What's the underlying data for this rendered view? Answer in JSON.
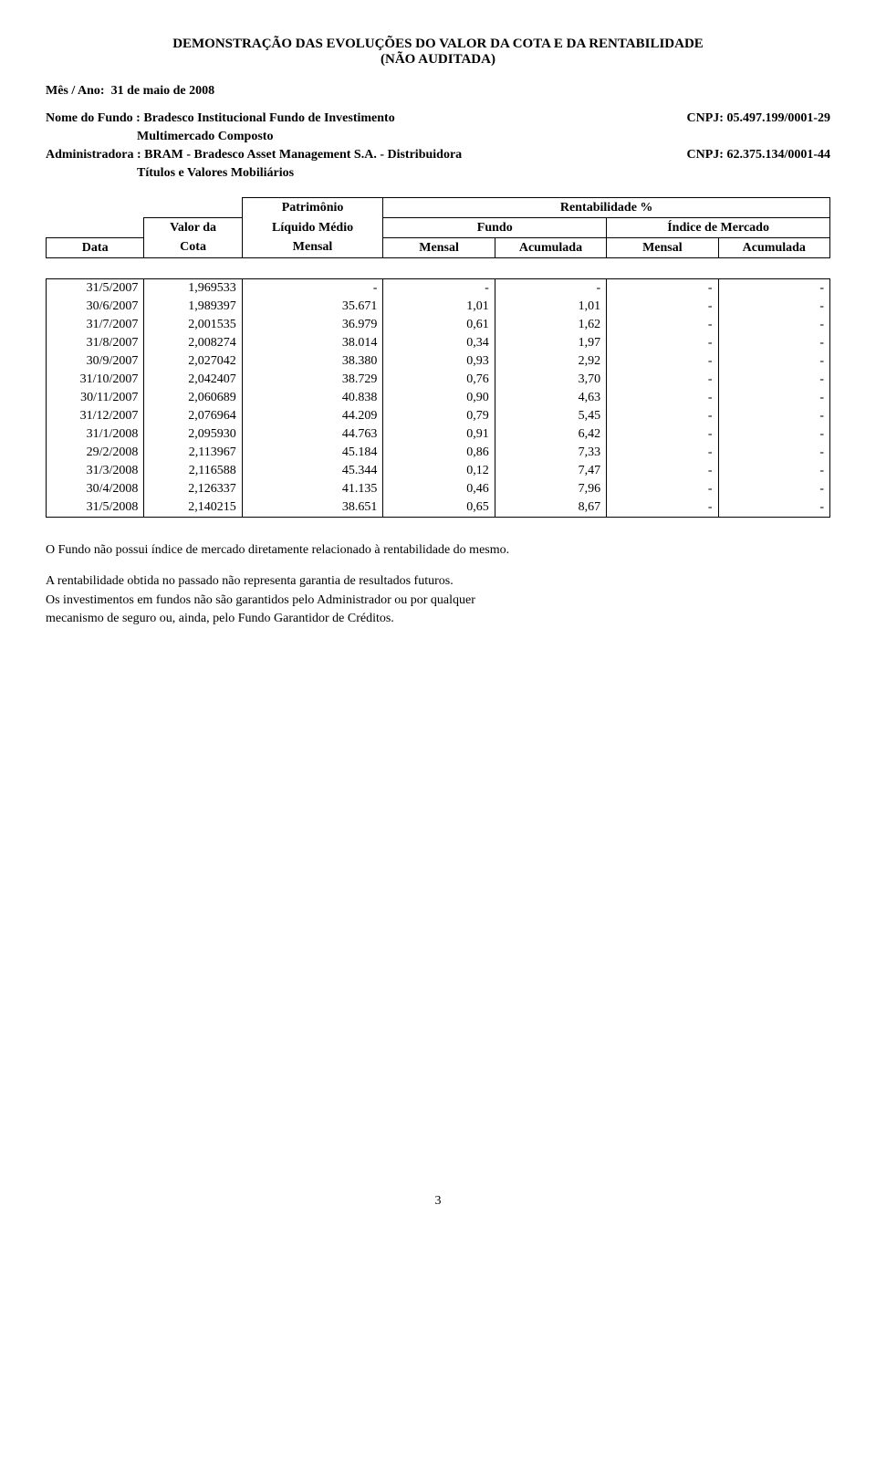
{
  "title_line1": "DEMONSTRAÇÃO DAS EVOLUÇÕES DO VALOR DA COTA E DA RENTABILIDADE",
  "title_line2": "(NÃO AUDITADA)",
  "mes_ano_label": "Mês / Ano:",
  "mes_ano_value": "31 de maio de 2008",
  "nome_fundo_label": "Nome do Fundo :",
  "nome_fundo_value": "Bradesco Institucional Fundo de Investimento",
  "nome_fundo_line2": "Multimercado Composto",
  "cnpj_fundo_label": "CNPJ:",
  "cnpj_fundo_value": "05.497.199/0001-29",
  "admin_label": "Administradora :",
  "admin_value": "BRAM - Bradesco Asset Management S.A. - Distribuidora",
  "admin_line2": "Títulos e Valores Mobiliários",
  "cnpj_admin_label": "CNPJ:",
  "cnpj_admin_value": "62.375.134/0001-44",
  "hdr": {
    "data": "Data",
    "valor_da": "Valor da",
    "cota": "Cota",
    "patrimonio": "Patrimônio",
    "liquido_medio": "Líquido Médio",
    "mensal": "Mensal",
    "rentab": "Rentabilidade %",
    "fundo": "Fundo",
    "indice": "Índice de Mercado",
    "acumulada": "Acumulada"
  },
  "col_widths_pct": [
    12.5,
    12.5,
    18.0,
    14.25,
    14.25,
    14.25,
    14.25
  ],
  "rows": [
    {
      "date": "31/5/2007",
      "cota": "1,969533",
      "pl": "-",
      "fm": "-",
      "fa": "-",
      "im": "-",
      "ia": "-"
    },
    {
      "date": "30/6/2007",
      "cota": "1,989397",
      "pl": "35.671",
      "fm": "1,01",
      "fa": "1,01",
      "im": "-",
      "ia": "-"
    },
    {
      "date": "31/7/2007",
      "cota": "2,001535",
      "pl": "36.979",
      "fm": "0,61",
      "fa": "1,62",
      "im": "-",
      "ia": "-"
    },
    {
      "date": "31/8/2007",
      "cota": "2,008274",
      "pl": "38.014",
      "fm": "0,34",
      "fa": "1,97",
      "im": "-",
      "ia": "-"
    },
    {
      "date": "30/9/2007",
      "cota": "2,027042",
      "pl": "38.380",
      "fm": "0,93",
      "fa": "2,92",
      "im": "-",
      "ia": "-"
    },
    {
      "date": "31/10/2007",
      "cota": "2,042407",
      "pl": "38.729",
      "fm": "0,76",
      "fa": "3,70",
      "im": "-",
      "ia": "-"
    },
    {
      "date": "30/11/2007",
      "cota": "2,060689",
      "pl": "40.838",
      "fm": "0,90",
      "fa": "4,63",
      "im": "-",
      "ia": "-"
    },
    {
      "date": "31/12/2007",
      "cota": "2,076964",
      "pl": "44.209",
      "fm": "0,79",
      "fa": "5,45",
      "im": "-",
      "ia": "-"
    },
    {
      "date": "31/1/2008",
      "cota": "2,095930",
      "pl": "44.763",
      "fm": "0,91",
      "fa": "6,42",
      "im": "-",
      "ia": "-"
    },
    {
      "date": "29/2/2008",
      "cota": "2,113967",
      "pl": "45.184",
      "fm": "0,86",
      "fa": "7,33",
      "im": "-",
      "ia": "-"
    },
    {
      "date": "31/3/2008",
      "cota": "2,116588",
      "pl": "45.344",
      "fm": "0,12",
      "fa": "7,47",
      "im": "-",
      "ia": "-"
    },
    {
      "date": "30/4/2008",
      "cota": "2,126337",
      "pl": "41.135",
      "fm": "0,46",
      "fa": "7,96",
      "im": "-",
      "ia": "-"
    },
    {
      "date": "31/5/2008",
      "cota": "2,140215",
      "pl": "38.651",
      "fm": "0,65",
      "fa": "8,67",
      "im": "-",
      "ia": "-"
    }
  ],
  "note1": "O Fundo não possui índice de mercado diretamente relacionado à rentabilidade do mesmo.",
  "note2a": "A rentabilidade obtida no passado não representa garantia de resultados futuros.",
  "note2b": "Os investimentos em fundos não são garantidos pelo Administrador ou por qualquer",
  "note2c": " mecanismo de seguro ou, ainda, pelo Fundo Garantidor de Créditos.",
  "page_number": "3"
}
